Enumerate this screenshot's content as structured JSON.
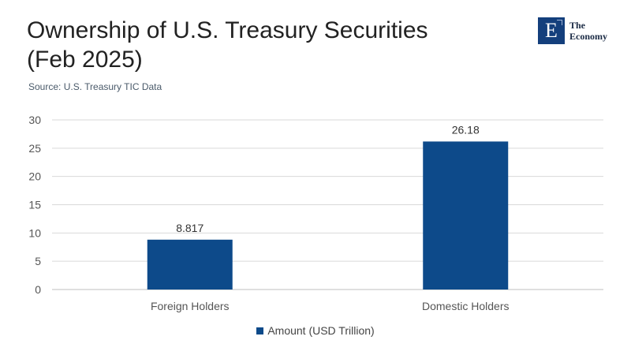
{
  "header": {
    "title_line1": "Ownership of U.S. Treasury Securities",
    "title_line2": "(Feb 2025)",
    "source": "Source: U.S. Treasury TIC Data"
  },
  "logo": {
    "mark": "E",
    "line1": "The",
    "line2": "Economy",
    "color": "#143f7c"
  },
  "chart_data": {
    "type": "bar",
    "title": "Ownership of U.S. Treasury Securities (Feb 2025)",
    "categories": [
      "Foreign Holders",
      "Domestic Holders"
    ],
    "series": [
      {
        "name": "Amount (USD Trillion)",
        "values": [
          8.817,
          26.18
        ],
        "labels": [
          "8.817",
          "26.18"
        ],
        "color": "#0d4a8a"
      }
    ],
    "ylim": [
      0,
      30
    ],
    "yticks": [
      0,
      5,
      10,
      15,
      20,
      25,
      30
    ],
    "grid": true,
    "legend": "bottom"
  }
}
